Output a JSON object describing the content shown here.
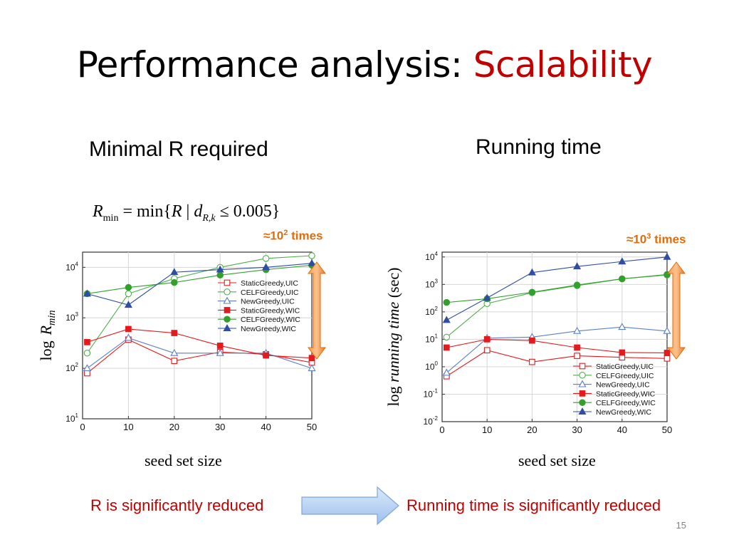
{
  "slide": {
    "title_main": "Performance analysis: ",
    "title_accent": "Scalability",
    "left_subtitle": "Minimal R required",
    "right_subtitle": "Running time",
    "formula": {
      "lhs": "R",
      "lhs_sub": "min",
      "eq": " = min{",
      "var": "R",
      "bar": " | ",
      "d": "d",
      "d_sub": "R,k",
      "rhs": " ≤ 0.005}"
    },
    "left_note": {
      "prefix": "≈10",
      "exp": "2",
      "suffix": " times"
    },
    "right_note": {
      "prefix": "≈10",
      "exp": "3",
      "suffix": " times"
    },
    "left_xcaption": "seed set size",
    "right_xcaption": "seed set size",
    "left_conclusion": "R is significantly reduced",
    "right_conclusion": "Running time is significantly reduced",
    "page_number": "15",
    "colors": {
      "accent": "#c00000",
      "note": "#e36c09",
      "arrow": "#f79646",
      "flow_arrow": "#a6c8f0"
    }
  },
  "chart_data": [
    {
      "type": "line",
      "ylabel_prefix": "log",
      "ylabel_var": "R",
      "ylabel_sub": "min",
      "yscale": "log",
      "ylim": [
        10,
        20000
      ],
      "xlim": [
        0,
        50
      ],
      "xticks": [
        "0",
        "10",
        "20",
        "30",
        "40",
        "50"
      ],
      "yticks": [
        {
          "base": "10",
          "exp": "1",
          "value": 10
        },
        {
          "base": "10",
          "exp": "2",
          "value": 100
        },
        {
          "base": "10",
          "exp": "3",
          "value": 1000
        },
        {
          "base": "10",
          "exp": "4",
          "value": 10000
        }
      ],
      "legend_position": "right-middle",
      "x": [
        1,
        10,
        20,
        30,
        40,
        50
      ],
      "series": [
        {
          "name": "StaticGreedy,UIC",
          "color": "#e41a1c",
          "marker": "square-open",
          "values": [
            80,
            370,
            140,
            210,
            190,
            130
          ]
        },
        {
          "name": "CELFGreedy,UIC",
          "color": "#4daf4a",
          "marker": "circle-open",
          "values": [
            200,
            3000,
            6000,
            10000,
            15000,
            17000
          ]
        },
        {
          "name": "NewGreedy,UIC",
          "color": "#5b7fc9",
          "marker": "triangle-open",
          "values": [
            100,
            400,
            200,
            200,
            200,
            100
          ]
        },
        {
          "name": "StaticGreedy,WIC",
          "color": "#e41a1c",
          "marker": "square",
          "values": [
            330,
            600,
            500,
            280,
            180,
            160
          ]
        },
        {
          "name": "CELFGreedy,WIC",
          "color": "#33a02c",
          "marker": "circle",
          "values": [
            3000,
            4000,
            5000,
            7000,
            9000,
            11000
          ]
        },
        {
          "name": "NewGreedy,WIC",
          "color": "#2f4ea3",
          "marker": "triangle",
          "values": [
            3000,
            1800,
            8000,
            9000,
            10000,
            12000
          ]
        }
      ]
    },
    {
      "type": "line",
      "ylabel_prefix": "log ",
      "ylabel_var": "running time",
      "ylabel_suffix": " (sec)",
      "yscale": "log",
      "ylim": [
        0.01,
        15000
      ],
      "xlim": [
        0,
        50
      ],
      "xticks": [
        "0",
        "10",
        "20",
        "30",
        "40",
        "50"
      ],
      "yticks": [
        {
          "base": "10",
          "exp": "-2",
          "value": 0.01
        },
        {
          "base": "10",
          "exp": "-1",
          "value": 0.1
        },
        {
          "base": "10",
          "exp": "0",
          "value": 1
        },
        {
          "base": "10",
          "exp": "1",
          "value": 10
        },
        {
          "base": "10",
          "exp": "2",
          "value": 100
        },
        {
          "base": "10",
          "exp": "3",
          "value": 1000
        },
        {
          "base": "10",
          "exp": "4",
          "value": 10000
        }
      ],
      "legend_position": "bottom-right",
      "x": [
        1,
        10,
        20,
        30,
        40,
        50
      ],
      "series": [
        {
          "name": "StaticGreedy,UIC",
          "color": "#e41a1c",
          "marker": "square-open",
          "values": [
            0.45,
            4,
            1.5,
            2.5,
            2.2,
            2
          ]
        },
        {
          "name": "CELFGreedy,UIC",
          "color": "#4daf4a",
          "marker": "circle-open",
          "values": [
            12,
            200,
            500,
            900,
            1600,
            2200
          ]
        },
        {
          "name": "NewGreedy,UIC",
          "color": "#5b7fc9",
          "marker": "triangle-open",
          "values": [
            0.6,
            11,
            12,
            20,
            28,
            20
          ]
        },
        {
          "name": "StaticGreedy,WIC",
          "color": "#e41a1c",
          "marker": "square",
          "values": [
            5,
            10,
            9,
            5,
            3.3,
            3.2
          ]
        },
        {
          "name": "CELFGreedy,WIC",
          "color": "#33a02c",
          "marker": "circle",
          "values": [
            220,
            300,
            520,
            950,
            1600,
            2300
          ]
        },
        {
          "name": "NewGreedy,WIC",
          "color": "#2f4ea3",
          "marker": "triangle",
          "values": [
            50,
            320,
            2700,
            4500,
            6800,
            10000
          ]
        }
      ]
    }
  ]
}
